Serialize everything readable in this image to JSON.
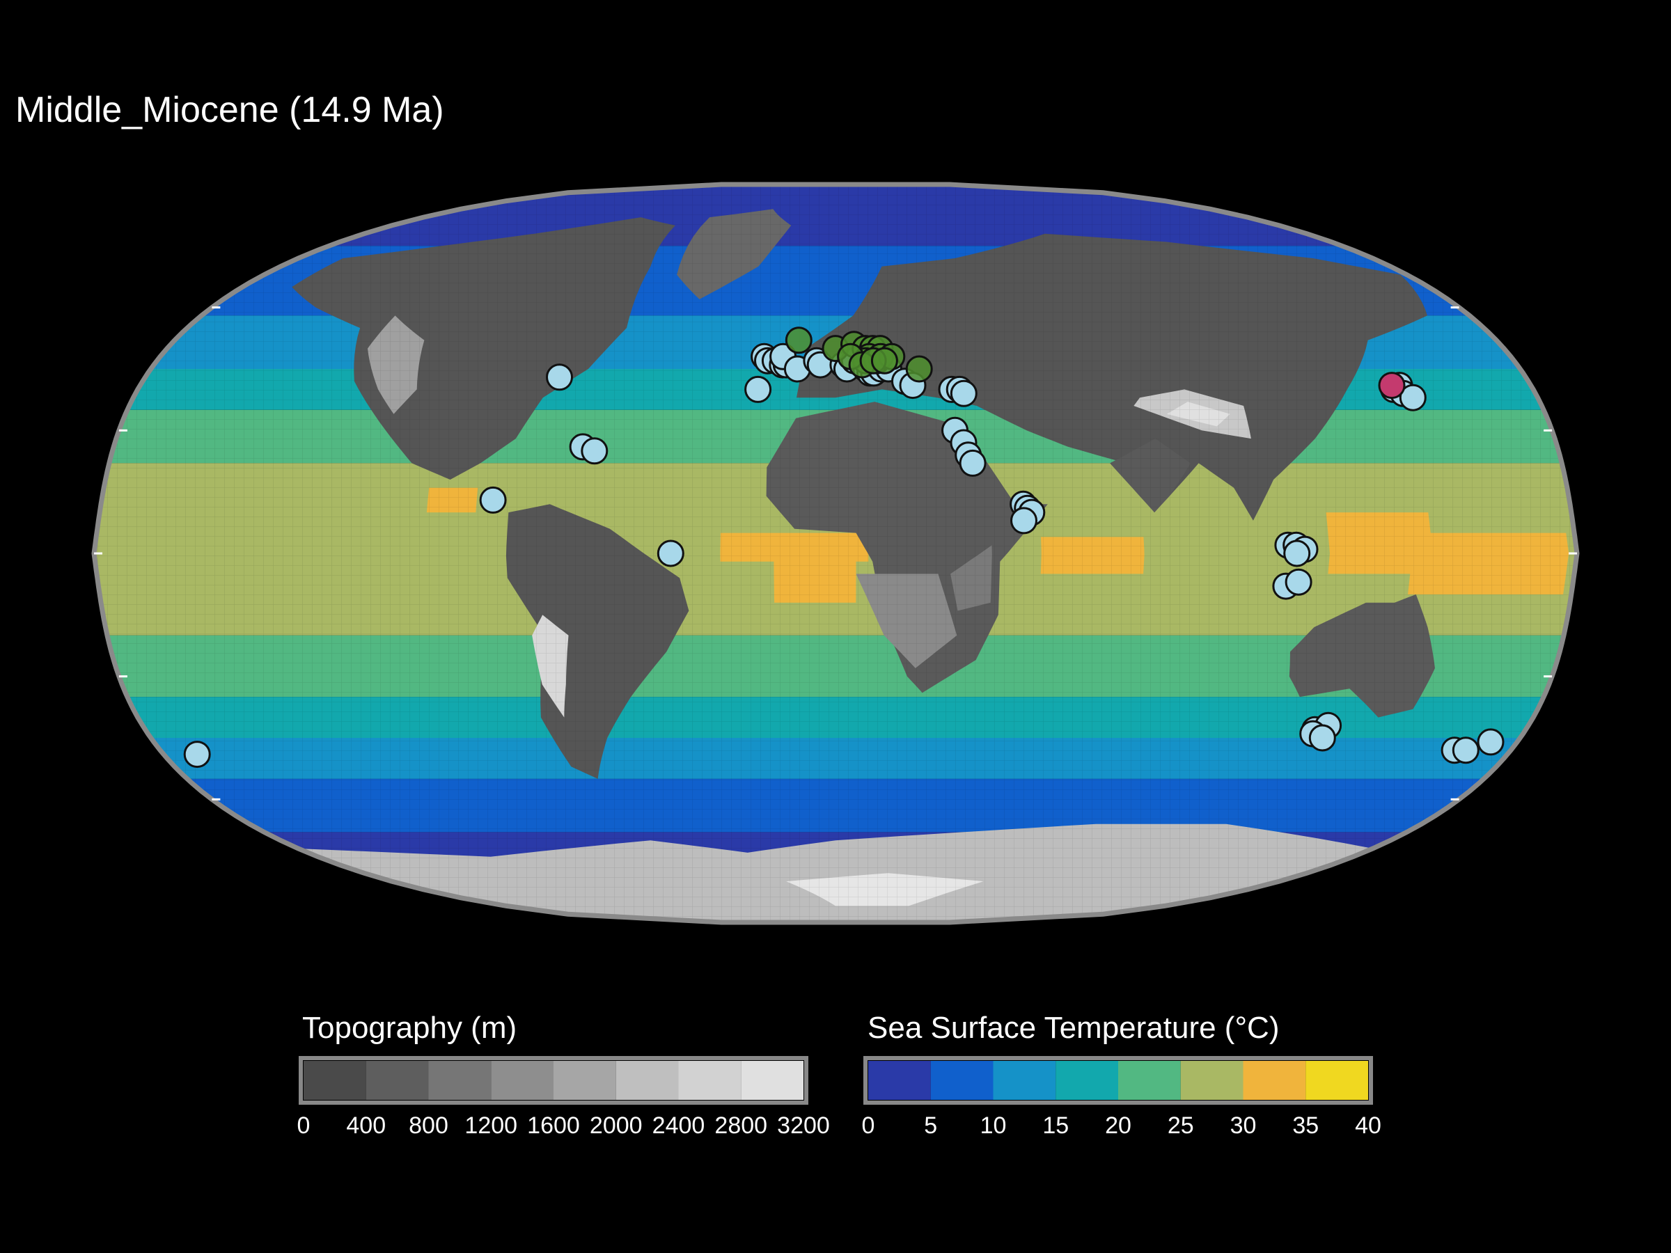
{
  "map": {
    "title": "Middle_Miocene (14.9 Ma)",
    "projection": "equal-earth-like pseudocylindrical",
    "ocean_bands": [
      {
        "lat": [
          75,
          90
        ],
        "color": "#2a3aa8"
      },
      {
        "lat": [
          58,
          75
        ],
        "color": "#1060cc"
      },
      {
        "lat": [
          45,
          58
        ],
        "color": "#1592c8"
      },
      {
        "lat": [
          35,
          45
        ],
        "color": "#12a8ad"
      },
      {
        "lat": [
          22,
          35
        ],
        "color": "#52b882"
      },
      {
        "lat": [
          -20,
          22
        ],
        "color": "#a9b864"
      },
      {
        "lat": [
          -35,
          -20
        ],
        "color": "#52b882"
      },
      {
        "lat": [
          -45,
          -35
        ],
        "color": "#12a8ad"
      },
      {
        "lat": [
          -55,
          -45
        ],
        "color": "#1592c8"
      },
      {
        "lat": [
          -68,
          -55
        ],
        "color": "#1060cc"
      },
      {
        "lat": [
          -90,
          -68
        ],
        "color": "#2a3aa8"
      }
    ],
    "warm_pools": [
      {
        "lon": [
          -28,
          8
        ],
        "lat": [
          -2,
          5
        ],
        "color": "#f0b43c"
      },
      {
        "lon": [
          -15,
          5
        ],
        "lat": [
          -12,
          0
        ],
        "color": "#f0b43c"
      },
      {
        "lon": [
          50,
          75
        ],
        "lat": [
          -5,
          4
        ],
        "color": "#f0b43c"
      },
      {
        "lon": [
          120,
          145
        ],
        "lat": [
          -5,
          10
        ],
        "color": "#f0b43c"
      },
      {
        "lon": [
          140,
          178
        ],
        "lat": [
          -10,
          5
        ],
        "color": "#f0b43c"
      },
      {
        "lon": [
          -100,
          -88
        ],
        "lat": [
          10,
          16
        ],
        "color": "#f0b43c"
      }
    ],
    "landmasses": [
      {
        "name": "north-america",
        "color": "#555555",
        "points": [
          [
            -165,
            72
          ],
          [
            -140,
            75
          ],
          [
            -115,
            78
          ],
          [
            -85,
            82
          ],
          [
            -65,
            80
          ],
          [
            -60,
            70
          ],
          [
            -58,
            55
          ],
          [
            -65,
            45
          ],
          [
            -75,
            38
          ],
          [
            -80,
            28
          ],
          [
            -88,
            22
          ],
          [
            -95,
            18
          ],
          [
            -105,
            22
          ],
          [
            -115,
            32
          ],
          [
            -125,
            42
          ],
          [
            -132,
            55
          ],
          [
            -150,
            60
          ],
          [
            -165,
            65
          ]
        ]
      },
      {
        "name": "greenland",
        "color": "#686868",
        "points": [
          [
            -55,
            82
          ],
          [
            -30,
            84
          ],
          [
            -18,
            80
          ],
          [
            -25,
            70
          ],
          [
            -40,
            62
          ],
          [
            -50,
            68
          ]
        ]
      },
      {
        "name": "south-america",
        "color": "#555555",
        "points": [
          [
            -80,
            10
          ],
          [
            -70,
            12
          ],
          [
            -55,
            6
          ],
          [
            -38,
            -6
          ],
          [
            -36,
            -14
          ],
          [
            -42,
            -24
          ],
          [
            -52,
            -35
          ],
          [
            -60,
            -45
          ],
          [
            -66,
            -55
          ],
          [
            -72,
            -52
          ],
          [
            -76,
            -40
          ],
          [
            -72,
            -20
          ],
          [
            -80,
            -6
          ]
        ]
      },
      {
        "name": "eurasia",
        "color": "#555555",
        "points": [
          [
            -10,
            38
          ],
          [
            -8,
            50
          ],
          [
            5,
            58
          ],
          [
            15,
            70
          ],
          [
            40,
            72
          ],
          [
            80,
            78
          ],
          [
            120,
            76
          ],
          [
            160,
            72
          ],
          [
            178,
            68
          ],
          [
            168,
            58
          ],
          [
            145,
            52
          ],
          [
            132,
            40
          ],
          [
            120,
            28
          ],
          [
            108,
            18
          ],
          [
            102,
            8
          ],
          [
            98,
            16
          ],
          [
            90,
            22
          ],
          [
            78,
            10
          ],
          [
            72,
            22
          ],
          [
            58,
            26
          ],
          [
            48,
            30
          ],
          [
            36,
            36
          ],
          [
            26,
            38
          ],
          [
            12,
            40
          ],
          [
            0,
            38
          ]
        ]
      },
      {
        "name": "africa",
        "color": "#5a5a5a",
        "points": [
          [
            -17,
            21
          ],
          [
            -10,
            33
          ],
          [
            10,
            37
          ],
          [
            32,
            31
          ],
          [
            44,
            12
          ],
          [
            52,
            12
          ],
          [
            40,
            -2
          ],
          [
            40,
            -15
          ],
          [
            35,
            -26
          ],
          [
            22,
            -34
          ],
          [
            18,
            -30
          ],
          [
            12,
            -17
          ],
          [
            9,
            -2
          ],
          [
            5,
            5
          ],
          [
            -10,
            6
          ],
          [
            -17,
            14
          ]
        ]
      },
      {
        "name": "india",
        "color": "#5a5a5a",
        "points": [
          [
            68,
            22
          ],
          [
            78,
            10
          ],
          [
            82,
            14
          ],
          [
            88,
            22
          ],
          [
            80,
            28
          ]
        ]
      },
      {
        "name": "australia",
        "color": "#5a5a5a",
        "points": [
          [
            113,
            -24
          ],
          [
            118,
            -18
          ],
          [
            130,
            -12
          ],
          [
            137,
            -12
          ],
          [
            142,
            -10
          ],
          [
            146,
            -18
          ],
          [
            150,
            -28
          ],
          [
            148,
            -38
          ],
          [
            140,
            -40
          ],
          [
            130,
            -33
          ],
          [
            118,
            -35
          ],
          [
            114,
            -30
          ]
        ]
      },
      {
        "name": "antarctica",
        "color": "#bdbdbd",
        "points": [
          [
            -180,
            -72
          ],
          [
            -120,
            -74
          ],
          [
            -60,
            -70
          ],
          [
            -30,
            -73
          ],
          [
            0,
            -70
          ],
          [
            40,
            -68
          ],
          [
            80,
            -66
          ],
          [
            120,
            -66
          ],
          [
            160,
            -70
          ],
          [
            180,
            -72
          ],
          [
            180,
            -90
          ],
          [
            -180,
            -90
          ]
        ]
      }
    ],
    "highlands": [
      {
        "color": "#a0a0a0",
        "points": [
          [
            -125,
            58
          ],
          [
            -112,
            52
          ],
          [
            -108,
            40
          ],
          [
            -112,
            34
          ],
          [
            -118,
            40
          ],
          [
            -126,
            50
          ]
        ]
      },
      {
        "color": "#c8c8c8",
        "points": [
          [
            76,
            36
          ],
          [
            92,
            30
          ],
          [
            104,
            28
          ],
          [
            104,
            36
          ],
          [
            90,
            40
          ],
          [
            78,
            38
          ]
        ]
      },
      {
        "color": "#e0e0e0",
        "points": [
          [
            84,
            34
          ],
          [
            96,
            31
          ],
          [
            100,
            34
          ],
          [
            90,
            37
          ]
        ]
      },
      {
        "color": "#d8d8d8",
        "points": [
          [
            -72,
            -15
          ],
          [
            -66,
            -20
          ],
          [
            -68,
            -32
          ],
          [
            -70,
            -40
          ],
          [
            -74,
            -32
          ],
          [
            -75,
            -20
          ]
        ]
      },
      {
        "color": "#8a8a8a",
        "points": [
          [
            5,
            -5
          ],
          [
            25,
            -5
          ],
          [
            30,
            -20
          ],
          [
            20,
            -28
          ],
          [
            12,
            -20
          ]
        ]
      },
      {
        "color": "#7a7a7a",
        "points": [
          [
            28,
            -5
          ],
          [
            38,
            2
          ],
          [
            38,
            -12
          ],
          [
            30,
            -14
          ]
        ]
      },
      {
        "color": "#e6e6e6",
        "points": [
          [
            -20,
            -80
          ],
          [
            20,
            -78
          ],
          [
            60,
            -80
          ],
          [
            40,
            -86
          ],
          [
            0,
            -86
          ]
        ]
      }
    ],
    "sites": [
      {
        "group": "light",
        "color": "#a8d8ea",
        "coords": [
          [
            -72,
            43
          ],
          [
            -63,
            26
          ],
          [
            -60,
            25
          ],
          [
            -84,
            13
          ],
          [
            -40,
            0
          ],
          [
            -171,
            -49
          ],
          [
            -20,
            40
          ],
          [
            -19,
            48
          ],
          [
            -18,
            47
          ],
          [
            -16,
            47
          ],
          [
            -14,
            46
          ],
          [
            -13,
            46
          ],
          [
            -14,
            48
          ],
          [
            -10,
            45
          ],
          [
            -5,
            47
          ],
          [
            -4,
            46
          ],
          [
            2,
            46
          ],
          [
            3,
            45
          ],
          [
            5,
            47
          ],
          [
            8,
            45
          ],
          [
            9,
            44
          ],
          [
            10,
            44
          ],
          [
            12,
            45
          ],
          [
            14,
            45
          ],
          [
            18,
            42
          ],
          [
            20,
            41
          ],
          [
            30,
            40
          ],
          [
            32,
            40
          ],
          [
            33,
            39
          ],
          [
            30,
            30
          ],
          [
            32,
            27
          ],
          [
            33,
            24
          ],
          [
            34,
            22
          ],
          [
            46,
            12
          ],
          [
            47,
            11
          ],
          [
            48,
            10
          ],
          [
            46,
            8
          ],
          [
            110,
            2
          ],
          [
            112,
            2
          ],
          [
            114,
            1
          ],
          [
            112,
            0
          ],
          [
            110,
            -8
          ],
          [
            113,
            -7
          ],
          [
            146,
            41
          ],
          [
            144,
            40
          ],
          [
            146,
            39
          ],
          [
            148,
            38
          ],
          [
            125,
            -43
          ],
          [
            127,
            -44
          ],
          [
            128,
            -42
          ],
          [
            125,
            -44
          ],
          [
            128,
            -45
          ],
          [
            165,
            -48
          ],
          [
            168,
            -48
          ],
          [
            173,
            -46
          ]
        ]
      },
      {
        "group": "green",
        "color": "#4f8f2e",
        "coords": [
          [
            -10,
            52
          ],
          [
            0,
            50
          ],
          [
            5,
            51
          ],
          [
            8,
            50
          ],
          [
            10,
            50
          ],
          [
            12,
            50
          ],
          [
            9,
            48
          ],
          [
            8,
            47
          ],
          [
            4,
            48
          ],
          [
            11,
            47
          ],
          [
            12,
            48
          ],
          [
            15,
            48
          ],
          [
            22,
            45
          ],
          [
            7,
            46
          ],
          [
            10,
            47
          ],
          [
            13,
            47
          ]
        ]
      },
      {
        "group": "pink",
        "color": "#c43a6e",
        "coords": [
          [
            144,
            41
          ]
        ]
      }
    ]
  },
  "legend_topography": {
    "title": "Topography (m)",
    "ticks": [
      "0",
      "400",
      "800",
      "1200",
      "1600",
      "2000",
      "2400",
      "2800",
      "3200"
    ],
    "colors": [
      "#4a4a4a",
      "#5e5e5e",
      "#767676",
      "#8e8e8e",
      "#a6a6a6",
      "#bfbfbf",
      "#d2d2d2",
      "#e0e0e0"
    ]
  },
  "legend_sst": {
    "title": "Sea Surface Temperature (°C)",
    "ticks": [
      "0",
      "5",
      "10",
      "15",
      "20",
      "25",
      "30",
      "35",
      "40"
    ],
    "colors": [
      "#2a3aa8",
      "#1060cc",
      "#1592c8",
      "#12a8ad",
      "#52b882",
      "#a9b864",
      "#f0b43c",
      "#f0d820"
    ]
  }
}
